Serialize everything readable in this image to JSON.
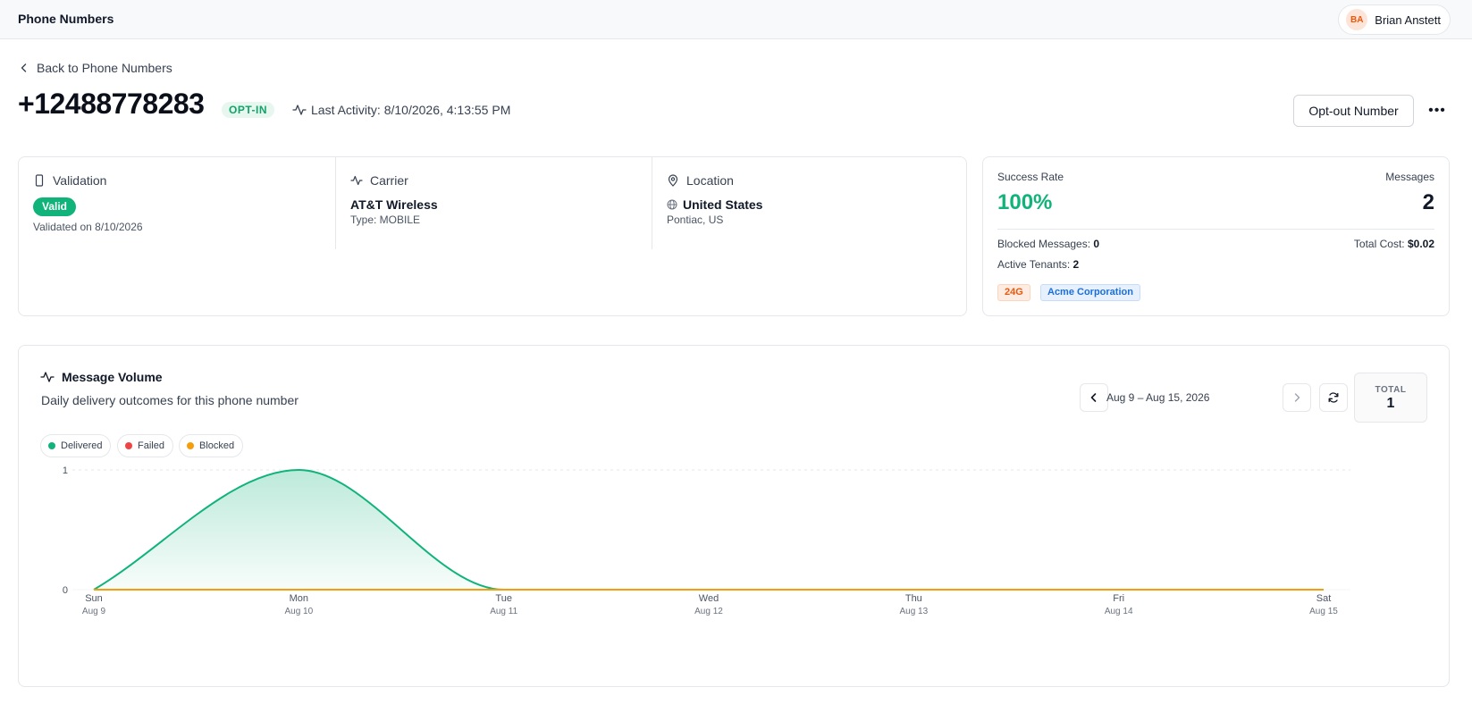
{
  "header": {
    "title": "Phone Numbers",
    "user": {
      "initials": "BA",
      "name": "Brian Anstett"
    }
  },
  "back_label": "Back to Phone Numbers",
  "phone": {
    "number": "+12488778283",
    "status": "OPT-IN",
    "last_activity": "Last Activity: 8/10/2026, 4:13:55 PM"
  },
  "actions": {
    "optout_label": "Opt-out Number",
    "more_label": "•••"
  },
  "validation": {
    "title": "Validation",
    "badge": "Valid",
    "date": "Validated on 8/10/2026"
  },
  "carrier": {
    "title": "Carrier",
    "name": "AT&T Wireless",
    "type": "Type: MOBILE"
  },
  "location": {
    "title": "Location",
    "country": "United States",
    "city": "Pontiac, US"
  },
  "stats": {
    "success_label": "Success Rate",
    "success_value": "100%",
    "messages_label": "Messages",
    "messages_value": "2",
    "blocked_label": "Blocked Messages:",
    "blocked_value": "0",
    "cost_label": "Total Cost:",
    "cost_value": "$0.02",
    "tenants_label": "Active Tenants:",
    "tenants_value": "2",
    "tags": [
      "24G",
      "Acme Corporation"
    ]
  },
  "volume": {
    "title": "Message Volume",
    "subtitle": "Daily delivery outcomes for this phone number",
    "range": "Aug 9 – Aug 15, 2026",
    "total_label": "TOTAL",
    "total_value": "1",
    "legend": [
      "Delivered",
      "Failed",
      "Blocked"
    ]
  },
  "colors": {
    "delivered": "#10b37a",
    "failed": "#ef4444",
    "blocked": "#f59e0b"
  },
  "chart_data": {
    "type": "area",
    "categories": [
      "Sun",
      "Mon",
      "Tue",
      "Wed",
      "Thu",
      "Fri",
      "Sat"
    ],
    "dates": [
      "Aug 9",
      "Aug 10",
      "Aug 11",
      "Aug 12",
      "Aug 13",
      "Aug 14",
      "Aug 15"
    ],
    "series": [
      {
        "name": "Delivered",
        "values": [
          0,
          1,
          0,
          0,
          0,
          0,
          0
        ]
      },
      {
        "name": "Failed",
        "values": [
          0,
          0,
          0,
          0,
          0,
          0,
          0
        ]
      },
      {
        "name": "Blocked",
        "values": [
          0,
          0,
          0,
          0,
          0,
          0,
          0
        ]
      }
    ],
    "yticks": [
      0,
      1
    ],
    "ylim": [
      0,
      1
    ]
  }
}
